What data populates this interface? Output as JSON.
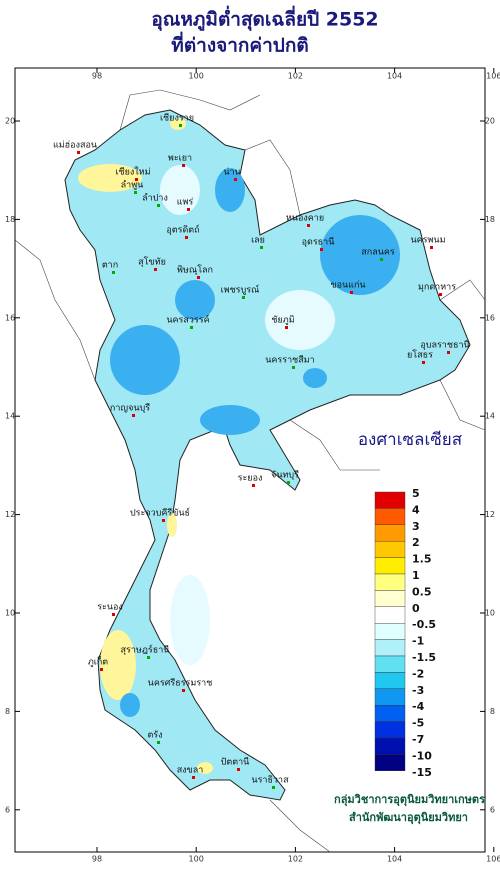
{
  "title": {
    "line1": "อุณหภูมิต่ำสุดเฉลี่ยปี  2552",
    "line2": "ที่ต่างจากค่าปกติ"
  },
  "map": {
    "lon_ticks": [
      98,
      100,
      102,
      104,
      106
    ],
    "lat_ticks": [
      6,
      8,
      10,
      12,
      14,
      16,
      18,
      20
    ],
    "places": [
      "เชียงราย",
      "แม่ฮ่องสอน",
      "เชียงใหม่",
      "ลำพูน",
      "พะเยา",
      "น่าน",
      "ลำปาง",
      "แพร่",
      "อุตรดิตถ์",
      "ตาก",
      "สุโขทัย",
      "พิษณุโลก",
      "เลย",
      "หนองคาย",
      "อุดรธานี",
      "สกลนคร",
      "นครพนม",
      "มุกดาหาร",
      "เพชรบูรณ์",
      "ขอนแก่น",
      "ชัยภูมิ",
      "นครสวรรค์",
      "อุบลราชธานี",
      "ยโสธร",
      "นครราชสีมา",
      "กาญจนบุรี",
      "ระยอง",
      "จันทบุรี",
      "ประจวบคีรีขันธ์",
      "ระนอง",
      "สุราษฎร์ธานี",
      "นครศรีธรรมราช",
      "ภูเก็ต",
      "ตรัง",
      "สงขลา",
      "ปัตตานี",
      "นราธิวาส"
    ]
  },
  "legend": {
    "title": "องศาเซลเซียส",
    "levels": [
      5,
      4,
      3,
      2,
      1.5,
      1,
      0.5,
      0,
      -0.5,
      -1,
      -1.5,
      -2,
      -3,
      -4,
      -5,
      -7,
      -10,
      -15
    ],
    "colors": [
      "#e00000",
      "#ff5a00",
      "#ff9a00",
      "#ffc800",
      "#ffee00",
      "#ffff80",
      "#ffffd0",
      "#ffffff",
      "#e0ffff",
      "#b0f0f8",
      "#60e0f0",
      "#20c8f0",
      "#1098f0",
      "#0060f0",
      "#0030e0",
      "#0010b0",
      "#000080"
    ]
  },
  "footer": {
    "line1": "กลุ่มวิชาการอุตุนิยมวิทยาเกษตร",
    "line2": "สำนักพัฒนาอุตุนิยมวิทยา"
  }
}
